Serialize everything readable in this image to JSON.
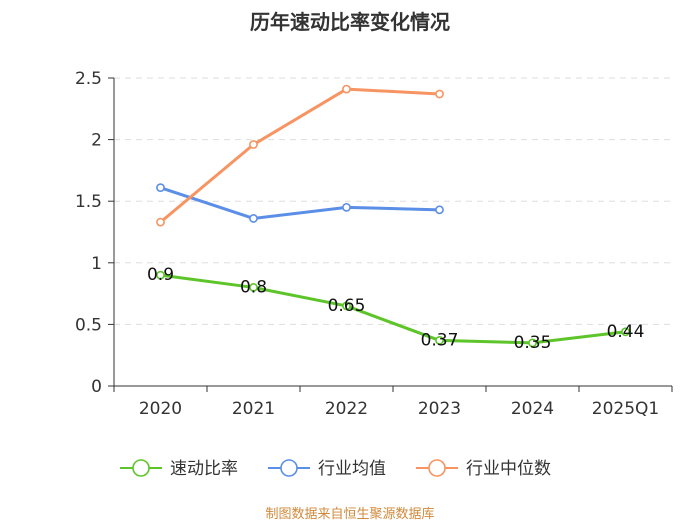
{
  "chart_data": {
    "type": "line",
    "title": "历年速动比率变化情况",
    "categories": [
      "2020",
      "2021",
      "2022",
      "2023",
      "2024",
      "2025Q1"
    ],
    "ylim": [
      0,
      2.5
    ],
    "yticks": [
      "0",
      "0.5",
      "1",
      "1.5",
      "2",
      "2.5"
    ],
    "grid": true,
    "legend_position": "bottom",
    "series": [
      {
        "name": "速动比率",
        "color": "#5dc52a",
        "values": [
          0.9,
          0.8,
          0.65,
          0.37,
          0.35,
          0.44
        ],
        "labels": [
          "0.9",
          "0.8",
          "0.65",
          "0.37",
          "0.35",
          "0.44"
        ]
      },
      {
        "name": "行业均值",
        "color": "#5b8ee6",
        "values": [
          1.61,
          1.36,
          1.45,
          1.43,
          null,
          null
        ]
      },
      {
        "name": "行业中位数",
        "color": "#f79461",
        "values": [
          1.33,
          1.96,
          2.41,
          2.37,
          null,
          null
        ]
      }
    ]
  },
  "source": "制图数据来自恒生聚源数据库"
}
